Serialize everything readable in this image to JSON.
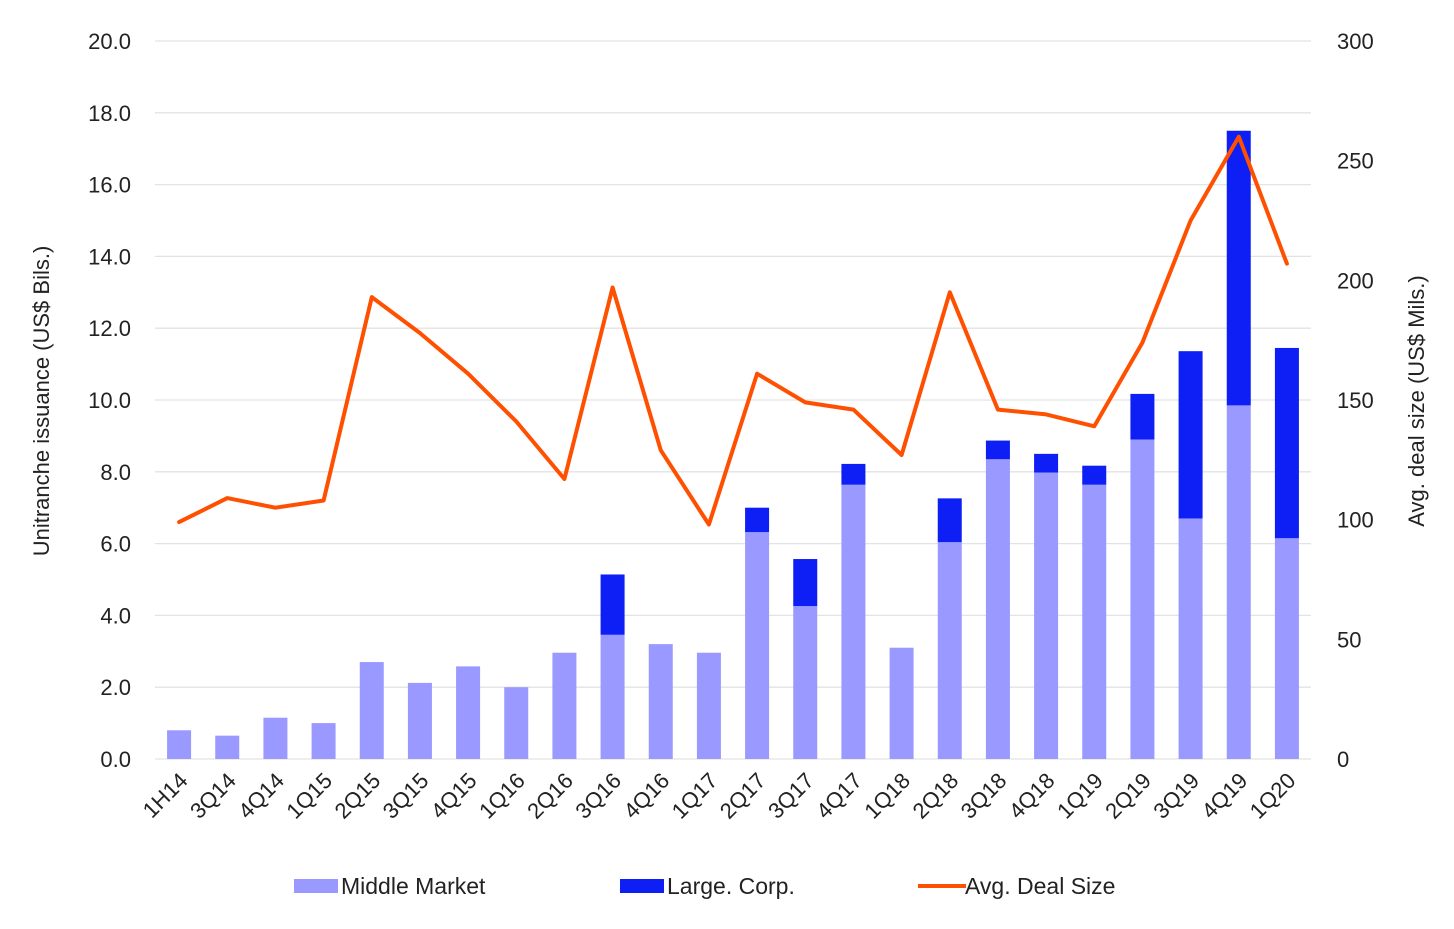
{
  "chart_data": {
    "type": "bar",
    "stacked": true,
    "categories": [
      "1H14",
      "3Q14",
      "4Q14",
      "1Q15",
      "2Q15",
      "3Q15",
      "4Q15",
      "1Q16",
      "2Q16",
      "3Q16",
      "4Q16",
      "1Q17",
      "2Q17",
      "3Q17",
      "4Q17",
      "1Q18",
      "2Q18",
      "3Q18",
      "4Q18",
      "1Q19",
      "2Q19",
      "3Q19",
      "4Q19",
      "1Q20"
    ],
    "series": [
      {
        "name": "Middle Market",
        "kind": "bar",
        "axis": "left",
        "color": "#9999ff",
        "values": [
          0.8,
          0.65,
          1.15,
          1.0,
          2.7,
          2.12,
          2.58,
          2.0,
          2.96,
          3.46,
          3.2,
          2.96,
          6.32,
          4.26,
          7.64,
          3.1,
          6.04,
          8.35,
          7.98,
          7.64,
          8.9,
          6.7,
          9.85,
          6.15
        ]
      },
      {
        "name": "Large. Corp.",
        "kind": "bar",
        "axis": "left",
        "color": "#0d1ff5",
        "values": [
          0,
          0,
          0,
          0,
          0,
          0,
          0,
          0,
          0,
          1.68,
          0,
          0,
          0.68,
          1.31,
          0.58,
          0,
          1.22,
          0.52,
          0.52,
          0.53,
          1.27,
          4.66,
          7.65,
          5.3
        ]
      },
      {
        "name": "Avg. Deal Size",
        "kind": "line",
        "axis": "right",
        "color": "#fe5000",
        "values": [
          99,
          109,
          105,
          108,
          193,
          178,
          161,
          141,
          117,
          197,
          129,
          98,
          161,
          149,
          146,
          127,
          195,
          146,
          144,
          139,
          174,
          225,
          260,
          207
        ]
      }
    ],
    "ylabel": "Unitranche issuance (US$ Bils.)",
    "y2label": "Avg. deal size (US$ Mils.)",
    "ylim": [
      0,
      20
    ],
    "y2lim": [
      0,
      300
    ],
    "yticks": [
      "0.0",
      "2.0",
      "4.0",
      "6.0",
      "8.0",
      "10.0",
      "12.0",
      "14.0",
      "16.0",
      "18.0",
      "20.0"
    ],
    "y2ticks": [
      "0",
      "50",
      "100",
      "150",
      "200",
      "250",
      "300"
    ],
    "grid": true,
    "legend_position": "bottom"
  }
}
